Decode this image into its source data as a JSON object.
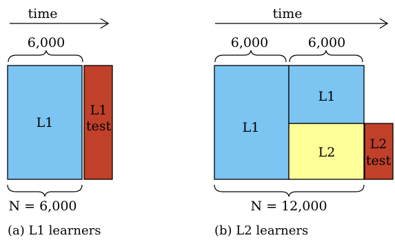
{
  "colors": {
    "l1_block": "#7cc4f2",
    "l2_block": "#ffff99",
    "test_block": "#c0402a"
  },
  "panel_a": {
    "time_label": "time",
    "top_brace_label": "6,000",
    "block_l1_label": "L1",
    "test_label_line1": "L1",
    "test_label_line2": "test",
    "n_label": "N = 6,000",
    "caption": "(a) L1 learners"
  },
  "panel_b": {
    "time_label": "time",
    "top_brace_left_label": "6,000",
    "top_brace_right_label": "6,000",
    "block_l1_left_label": "L1",
    "block_l1_top_label": "L1",
    "block_l2_label": "L2",
    "test_label_line1": "L2",
    "test_label_line2": "test",
    "n_label": "N = 12,000",
    "caption": "(b) L2 learners"
  }
}
